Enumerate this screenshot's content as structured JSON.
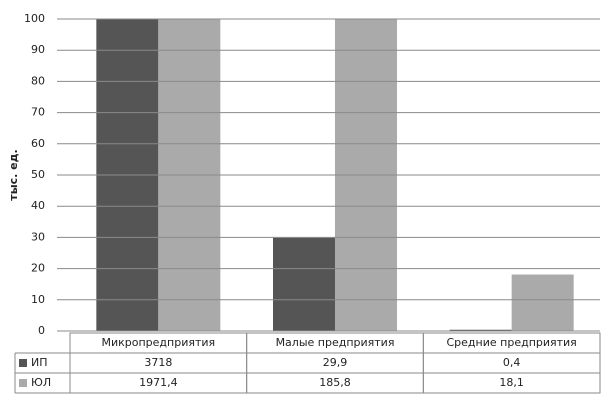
{
  "chart_data": {
    "type": "bar",
    "y_label": "тыс. ед.",
    "categories": [
      "Микропредприятия",
      "Малые предприятия",
      "Средние предприятия"
    ],
    "series": [
      {
        "name": "ИП",
        "color": "#555555",
        "values": [
          3718,
          29.9,
          0.4
        ],
        "value_labels": [
          "3718",
          "29,9",
          "0,4"
        ]
      },
      {
        "name": "ЮЛ",
        "color": "#aaaaaa",
        "values": [
          1971.4,
          185.8,
          18.1
        ],
        "value_labels": [
          "1971,4",
          "185,8",
          "18,1"
        ]
      }
    ],
    "ylim": [
      0,
      100
    ],
    "yticks": [
      0,
      10,
      20,
      30,
      40,
      50,
      60,
      70,
      80,
      90,
      100
    ],
    "grid": true
  }
}
